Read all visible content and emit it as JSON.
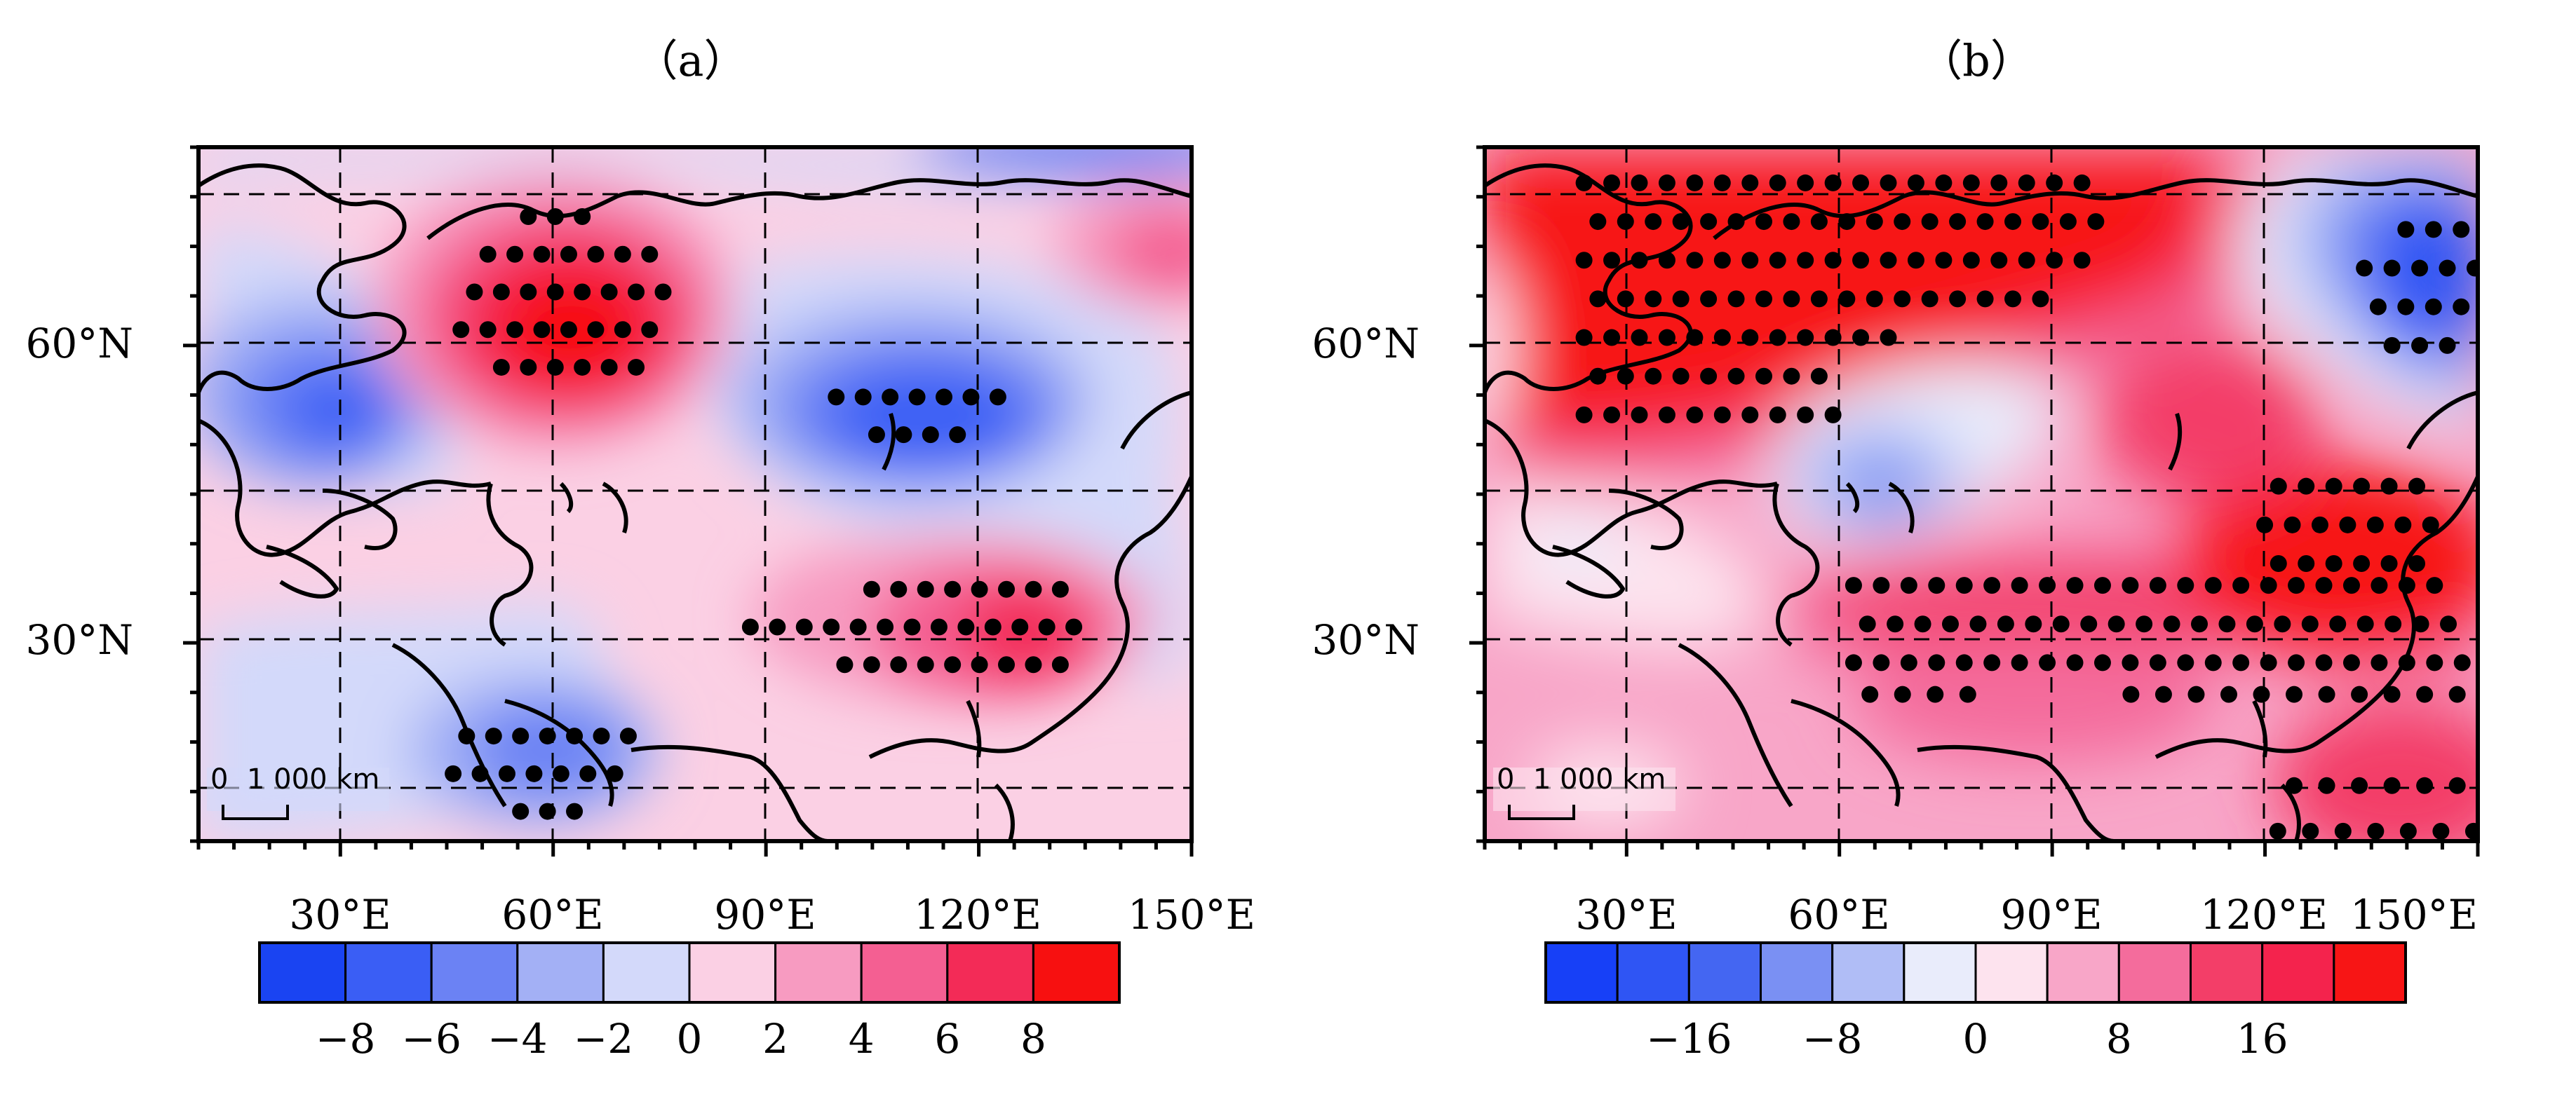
{
  "panels": [
    {
      "title": "（a）",
      "lon_ticks": [
        "30°E",
        "60°E",
        "90°E",
        "120°E",
        "150°E"
      ],
      "lat_ticks": [
        "60°N",
        "30°N"
      ],
      "scale_bar": {
        "zero": "0",
        "length": "1 000 km"
      },
      "colorbar": {
        "colors": [
          "#1a44f2",
          "#3a5ef5",
          "#6b82f4",
          "#a3b0f5",
          "#d3d9fa",
          "#fbd0e4",
          "#f79bc1",
          "#f45f92",
          "#f32b57",
          "#f71010"
        ],
        "tick_labels": [
          "−8",
          "−6",
          "−4",
          "−2",
          "0",
          "2",
          "4",
          "6",
          "8"
        ]
      },
      "anomaly_centers": [
        {
          "sign": "positive",
          "lon": 60,
          "lat": 62,
          "level": "8"
        },
        {
          "sign": "negative",
          "lon": 108,
          "lat": 55,
          "level": "−6"
        },
        {
          "sign": "negative",
          "lon": 28,
          "lat": 55,
          "level": "−6"
        },
        {
          "sign": "positive",
          "lon": 122,
          "lat": 30,
          "level": "6"
        },
        {
          "sign": "negative",
          "lon": 60,
          "lat": 20,
          "level": "−4"
        },
        {
          "sign": "positive",
          "lon": 145,
          "lat": 70,
          "level": "4"
        }
      ]
    },
    {
      "title": "（b）",
      "lon_ticks": [
        "30°E",
        "60°E",
        "90°E",
        "120°E",
        "150°E"
      ],
      "lat_ticks": [
        "60°N",
        "30°N"
      ],
      "scale_bar": {
        "zero": "0",
        "length": "1 000 km"
      },
      "colorbar": {
        "colors": [
          "#1740f7",
          "#2f55f4",
          "#4466f2",
          "#7a90f3",
          "#b0bdf6",
          "#e9ecfb",
          "#fde3ee",
          "#f8a6c8",
          "#f46c9c",
          "#f33e68",
          "#f4234d",
          "#f71515"
        ],
        "tick_labels": [
          "−16",
          "−8",
          "0",
          "8",
          "16"
        ]
      },
      "anomaly_centers": [
        {
          "sign": "positive",
          "lon": 55,
          "lat": 68,
          "level": "20"
        },
        {
          "sign": "negative",
          "lon": 142,
          "lat": 66,
          "level": "−20"
        },
        {
          "sign": "negative",
          "lon": 63,
          "lat": 48,
          "level": "−8"
        },
        {
          "sign": "positive",
          "lon": 122,
          "lat": 38,
          "level": "20"
        },
        {
          "sign": "positive",
          "lon": 110,
          "lat": 30,
          "level": "16"
        }
      ]
    }
  ]
}
